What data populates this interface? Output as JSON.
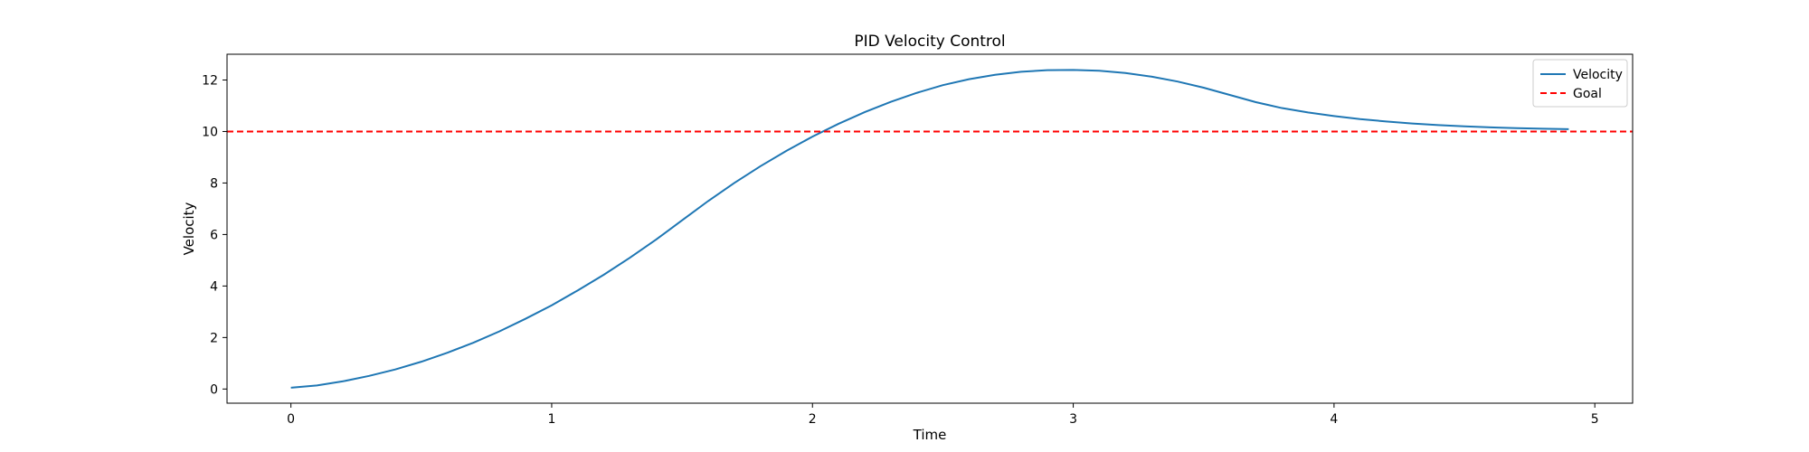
{
  "chart_data": {
    "type": "line",
    "title": "PID Velocity Control",
    "xlabel": "Time",
    "ylabel": "Velocity",
    "xlim": [
      -0.245,
      5.145
    ],
    "ylim": [
      -0.55,
      13
    ],
    "xticks": [
      0,
      1,
      2,
      3,
      4,
      5
    ],
    "yticks": [
      0,
      2,
      4,
      6,
      8,
      10,
      12
    ],
    "grid": false,
    "legend_position": "top-right",
    "series": [
      {
        "name": "Velocity",
        "color": "#1f77b4",
        "style": "solid",
        "x": [
          0.0,
          0.1,
          0.2,
          0.3,
          0.4,
          0.5,
          0.6,
          0.7,
          0.8,
          0.9,
          1.0,
          1.1,
          1.2,
          1.3,
          1.4,
          1.5,
          1.6,
          1.7,
          1.8,
          1.9,
          2.0,
          2.1,
          2.2,
          2.3,
          2.4,
          2.5,
          2.6,
          2.7,
          2.8,
          2.9,
          3.0,
          3.1,
          3.2,
          3.3,
          3.4,
          3.5,
          3.6,
          3.7,
          3.8,
          3.9,
          4.0,
          4.1,
          4.2,
          4.3,
          4.4,
          4.5,
          4.6,
          4.7,
          4.8,
          4.9
        ],
        "y": [
          0.05,
          0.14,
          0.3,
          0.51,
          0.76,
          1.06,
          1.41,
          1.8,
          2.24,
          2.73,
          3.25,
          3.83,
          4.44,
          5.1,
          5.8,
          6.55,
          7.3,
          8.0,
          8.65,
          9.25,
          9.8,
          10.3,
          10.75,
          11.15,
          11.5,
          11.8,
          12.03,
          12.2,
          12.32,
          12.38,
          12.39,
          12.36,
          12.27,
          12.13,
          11.94,
          11.7,
          11.42,
          11.14,
          10.91,
          10.74,
          10.6,
          10.48,
          10.39,
          10.31,
          10.25,
          10.2,
          10.16,
          10.13,
          10.11,
          10.09
        ]
      },
      {
        "name": "Goal",
        "color": "#ff0000",
        "style": "dashed",
        "y_constant": 10
      }
    ]
  }
}
